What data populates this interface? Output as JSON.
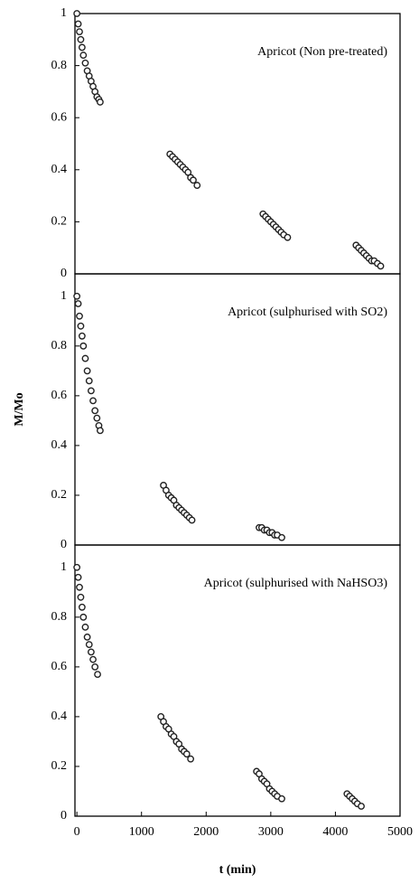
{
  "chart_data": [
    {
      "type": "scatter",
      "annotation": "Apricot (Non pre-treated)",
      "x": [
        0,
        20,
        40,
        60,
        80,
        100,
        130,
        160,
        190,
        220,
        250,
        280,
        310,
        340,
        360,
        1440,
        1480,
        1520,
        1560,
        1600,
        1640,
        1680,
        1720,
        1760,
        1800,
        1860,
        2880,
        2920,
        2960,
        3000,
        3040,
        3080,
        3120,
        3160,
        3200,
        3260,
        4320,
        4360,
        4400,
        4440,
        4480,
        4520,
        4560,
        4600,
        4650,
        4700
      ],
      "y": [
        1.0,
        0.96,
        0.93,
        0.9,
        0.87,
        0.84,
        0.81,
        0.78,
        0.76,
        0.74,
        0.72,
        0.7,
        0.68,
        0.67,
        0.66,
        0.46,
        0.45,
        0.44,
        0.43,
        0.42,
        0.41,
        0.4,
        0.39,
        0.37,
        0.36,
        0.34,
        0.23,
        0.22,
        0.21,
        0.2,
        0.19,
        0.18,
        0.17,
        0.16,
        0.15,
        0.14,
        0.11,
        0.1,
        0.09,
        0.08,
        0.07,
        0.06,
        0.05,
        0.05,
        0.04,
        0.03
      ],
      "xlim": [
        -30,
        5000
      ],
      "ylim": [
        0,
        1
      ],
      "yticks": [
        0,
        0.2,
        0.4,
        0.6,
        0.8,
        1
      ]
    },
    {
      "type": "scatter",
      "annotation": "Apricot (sulphurised with SO2)",
      "ylabel": "M/Mo",
      "x": [
        0,
        20,
        40,
        60,
        80,
        100,
        130,
        160,
        190,
        220,
        250,
        280,
        310,
        340,
        360,
        1340,
        1380,
        1420,
        1460,
        1500,
        1540,
        1580,
        1620,
        1660,
        1700,
        1740,
        1780,
        2820,
        2860,
        2900,
        2940,
        2980,
        3020,
        3060,
        3100,
        3170
      ],
      "y": [
        1.0,
        0.97,
        0.92,
        0.88,
        0.84,
        0.8,
        0.75,
        0.7,
        0.66,
        0.62,
        0.58,
        0.54,
        0.51,
        0.48,
        0.46,
        0.24,
        0.22,
        0.2,
        0.19,
        0.18,
        0.16,
        0.15,
        0.14,
        0.13,
        0.12,
        0.11,
        0.1,
        0.07,
        0.07,
        0.06,
        0.06,
        0.05,
        0.05,
        0.04,
        0.04,
        0.03
      ],
      "xlim": [
        -30,
        5000
      ],
      "ylim": [
        0,
        1.09
      ],
      "yticks": [
        0,
        0.2,
        0.4,
        0.6,
        0.8,
        1
      ]
    },
    {
      "type": "scatter",
      "annotation": "Apricot (sulphurised with NaHSO3)",
      "xlabel": "t (min)",
      "x": [
        0,
        20,
        40,
        60,
        80,
        100,
        130,
        160,
        190,
        220,
        250,
        280,
        320,
        1300,
        1340,
        1380,
        1420,
        1460,
        1500,
        1540,
        1580,
        1620,
        1660,
        1700,
        1760,
        2780,
        2820,
        2860,
        2900,
        2940,
        2980,
        3020,
        3060,
        3100,
        3170,
        4180,
        4220,
        4260,
        4300,
        4340,
        4400
      ],
      "y": [
        1.0,
        0.96,
        0.92,
        0.88,
        0.84,
        0.8,
        0.76,
        0.72,
        0.69,
        0.66,
        0.63,
        0.6,
        0.57,
        0.4,
        0.38,
        0.36,
        0.35,
        0.33,
        0.32,
        0.3,
        0.29,
        0.27,
        0.26,
        0.25,
        0.23,
        0.18,
        0.17,
        0.15,
        0.14,
        0.13,
        0.11,
        0.1,
        0.09,
        0.08,
        0.07,
        0.09,
        0.08,
        0.07,
        0.06,
        0.05,
        0.04
      ],
      "xlim": [
        -30,
        5000
      ],
      "ylim": [
        0,
        1.09
      ],
      "yticks": [
        0,
        0.2,
        0.4,
        0.6,
        0.8,
        1
      ],
      "xticks": [
        0,
        1000,
        2000,
        3000,
        4000,
        5000
      ]
    }
  ]
}
